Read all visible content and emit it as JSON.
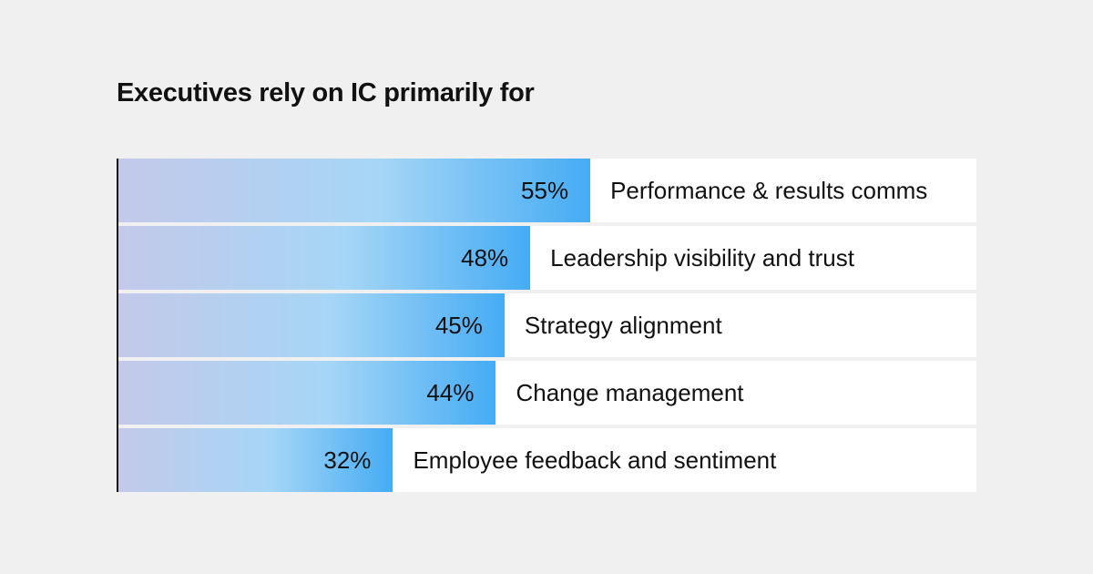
{
  "chart_data": {
    "type": "bar",
    "orientation": "horizontal",
    "title": "Executives rely on IC primarily for",
    "categories": [
      "Performance & results comms",
      "Leadership visibility and trust",
      "Strategy alignment",
      "Change management",
      "Employee feedback and sentiment"
    ],
    "values": [
      55,
      48,
      45,
      44,
      32
    ],
    "value_labels": [
      "55%",
      "48%",
      "45%",
      "44%",
      "32%"
    ],
    "xlim": [
      0,
      100
    ],
    "grid": false,
    "colors": {
      "gradient_start": "#c4c9ea",
      "gradient_mid": "#a6d6f6",
      "gradient_end": "#45acf4",
      "background": "#f0f0f0",
      "track": "#ffffff"
    }
  }
}
